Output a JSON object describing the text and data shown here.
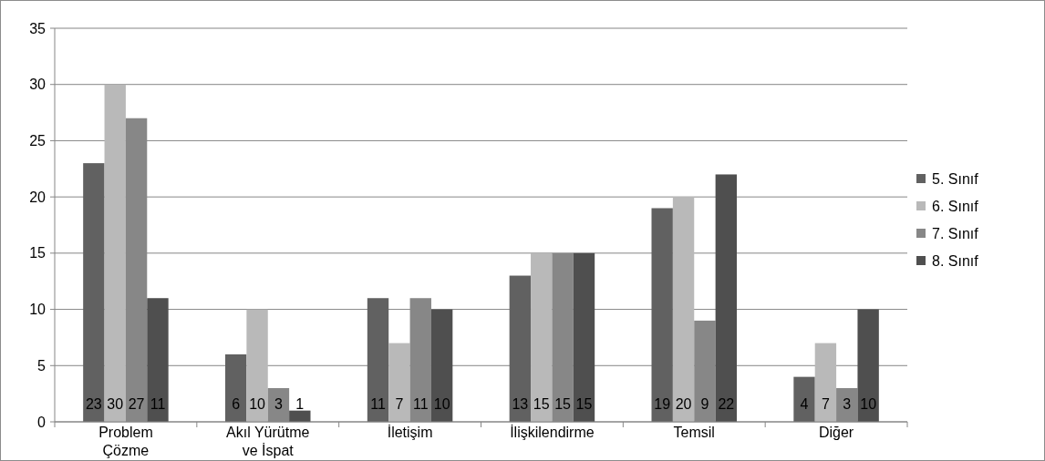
{
  "chart_data": {
    "type": "bar",
    "categories": [
      "Problem Çözme",
      "Akıl Yürütme ve İspat",
      "İletişim",
      "İlişkilendirme",
      "Temsil",
      "Diğer"
    ],
    "series": [
      {
        "name": "5. Sınıf",
        "color": "#616161",
        "values": [
          23,
          6,
          11,
          13,
          19,
          4
        ]
      },
      {
        "name": "6. Sınıf",
        "color": "#b9b9b9",
        "values": [
          30,
          10,
          7,
          15,
          20,
          7
        ]
      },
      {
        "name": "7. Sınıf",
        "color": "#878787",
        "values": [
          27,
          3,
          11,
          15,
          9,
          3
        ]
      },
      {
        "name": "8. Sınıf",
        "color": "#4f4f4f",
        "values": [
          11,
          1,
          10,
          15,
          22,
          10
        ]
      }
    ],
    "ylim": [
      0,
      35
    ],
    "yticks": [
      0,
      5,
      10,
      15,
      20,
      25,
      30,
      35
    ],
    "grid": "y",
    "legend": "right",
    "data_labels": true
  }
}
